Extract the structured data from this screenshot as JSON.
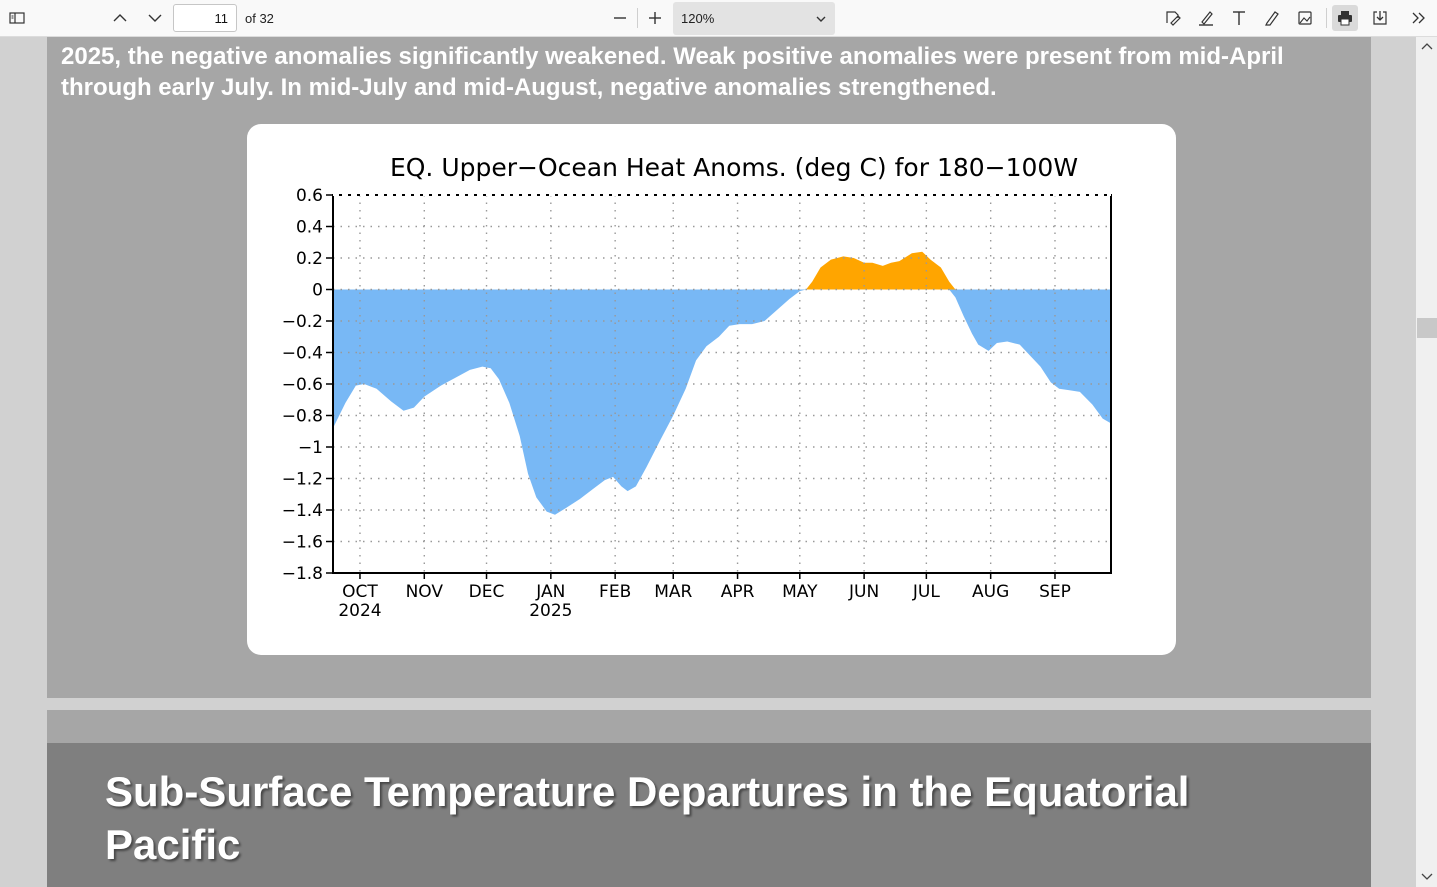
{
  "toolbar": {
    "page_current": "11",
    "page_of": "of 32",
    "zoom_value": "120%"
  },
  "document": {
    "intro_text": "2025, the negative anomalies significantly weakened.  Weak positive anomalies were present from mid-April through early July.  In mid-July and mid-August, negative anomalies strengthened.",
    "section_title": "Sub-Surface Temperature Departures in the Equatorial Pacific"
  },
  "colors": {
    "negative_fill": "#78b8f5",
    "positive_fill": "#ffa500",
    "page_bg": "#a6a6a6",
    "header_bg": "#7f7f7f"
  },
  "chart_data": {
    "type": "area",
    "title": "EQ. Upper−Ocean Heat Anoms. (deg C) for 180−100W",
    "ylim": [
      -1.8,
      0.6
    ],
    "y_ticks": [
      "0.6",
      "0.4",
      "0.2",
      "0",
      "−0.2",
      "−0.4",
      "−0.6",
      "−0.8",
      "−1",
      "−1.2",
      "−1.4",
      "−1.6",
      "−1.8"
    ],
    "y_tick_values": [
      0.6,
      0.4,
      0.2,
      0,
      -0.2,
      -0.4,
      -0.6,
      -0.8,
      -1,
      -1.2,
      -1.4,
      -1.6,
      -1.8
    ],
    "x_range": [
      "2024-09-18",
      "2025-09-28"
    ],
    "x_ticks": [
      {
        "label": "OCT",
        "sub": "2024",
        "date": "2024-10-01"
      },
      {
        "label": "NOV",
        "sub": "",
        "date": "2024-11-01"
      },
      {
        "label": "DEC",
        "sub": "",
        "date": "2024-12-01"
      },
      {
        "label": "JAN",
        "sub": "2025",
        "date": "2025-01-01"
      },
      {
        "label": "FEB",
        "sub": "",
        "date": "2025-02-01"
      },
      {
        "label": "MAR",
        "sub": "",
        "date": "2025-03-01"
      },
      {
        "label": "APR",
        "sub": "",
        "date": "2025-04-01"
      },
      {
        "label": "MAY",
        "sub": "",
        "date": "2025-05-01"
      },
      {
        "label": "JUN",
        "sub": "",
        "date": "2025-06-01"
      },
      {
        "label": "JUL",
        "sub": "",
        "date": "2025-07-01"
      },
      {
        "label": "AUG",
        "sub": "",
        "date": "2025-08-01"
      },
      {
        "label": "SEP",
        "sub": "",
        "date": "2025-09-01"
      }
    ],
    "grid": true,
    "series": [
      {
        "values": [
          [
            "2024-09-18",
            -0.88
          ],
          [
            "2024-09-24",
            -0.72
          ],
          [
            "2024-09-29",
            -0.61
          ],
          [
            "2024-10-03",
            -0.6
          ],
          [
            "2024-10-09",
            -0.63
          ],
          [
            "2024-10-16",
            -0.71
          ],
          [
            "2024-10-22",
            -0.77
          ],
          [
            "2024-10-27",
            -0.75
          ],
          [
            "2024-11-01",
            -0.68
          ],
          [
            "2024-11-09",
            -0.61
          ],
          [
            "2024-11-16",
            -0.56
          ],
          [
            "2024-11-23",
            -0.51
          ],
          [
            "2024-11-29",
            -0.49
          ],
          [
            "2024-12-03",
            -0.5
          ],
          [
            "2024-12-07",
            -0.57
          ],
          [
            "2024-12-12",
            -0.72
          ],
          [
            "2024-12-17",
            -0.93
          ],
          [
            "2024-12-21",
            -1.17
          ],
          [
            "2024-12-25",
            -1.32
          ],
          [
            "2024-12-30",
            -1.41
          ],
          [
            "2025-01-03",
            -1.43
          ],
          [
            "2025-01-08",
            -1.39
          ],
          [
            "2025-01-15",
            -1.33
          ],
          [
            "2025-01-21",
            -1.27
          ],
          [
            "2025-01-27",
            -1.21
          ],
          [
            "2025-01-31",
            -1.19
          ],
          [
            "2025-02-04",
            -1.25
          ],
          [
            "2025-02-07",
            -1.28
          ],
          [
            "2025-02-11",
            -1.25
          ],
          [
            "2025-02-16",
            -1.13
          ],
          [
            "2025-02-23",
            -0.95
          ],
          [
            "2025-03-01",
            -0.8
          ],
          [
            "2025-03-07",
            -0.63
          ],
          [
            "2025-03-12",
            -0.45
          ],
          [
            "2025-03-17",
            -0.36
          ],
          [
            "2025-03-23",
            -0.3
          ],
          [
            "2025-03-28",
            -0.23
          ],
          [
            "2025-04-02",
            -0.22
          ],
          [
            "2025-04-08",
            -0.22
          ],
          [
            "2025-04-14",
            -0.2
          ],
          [
            "2025-04-20",
            -0.13
          ],
          [
            "2025-04-26",
            -0.06
          ],
          [
            "2025-05-01",
            -0.01
          ],
          [
            "2025-05-04",
            0.0
          ],
          [
            "2025-05-07",
            0.05
          ],
          [
            "2025-05-11",
            0.14
          ],
          [
            "2025-05-16",
            0.19
          ],
          [
            "2025-05-22",
            0.21
          ],
          [
            "2025-05-27",
            0.2
          ],
          [
            "2025-06-01",
            0.17
          ],
          [
            "2025-06-05",
            0.17
          ],
          [
            "2025-06-10",
            0.15
          ],
          [
            "2025-06-14",
            0.17
          ],
          [
            "2025-06-18",
            0.18
          ],
          [
            "2025-06-24",
            0.23
          ],
          [
            "2025-06-29",
            0.24
          ],
          [
            "2025-07-03",
            0.19
          ],
          [
            "2025-07-08",
            0.14
          ],
          [
            "2025-07-12",
            0.05
          ],
          [
            "2025-07-15",
            -0.05
          ],
          [
            "2025-07-19",
            -0.17
          ],
          [
            "2025-07-23",
            -0.28
          ],
          [
            "2025-07-26",
            -0.35
          ],
          [
            "2025-07-31",
            -0.39
          ],
          [
            "2025-08-04",
            -0.34
          ],
          [
            "2025-08-09",
            -0.33
          ],
          [
            "2025-08-15",
            -0.35
          ],
          [
            "2025-08-20",
            -0.42
          ],
          [
            "2025-08-25",
            -0.49
          ],
          [
            "2025-08-30",
            -0.59
          ],
          [
            "2025-09-03",
            -0.63
          ],
          [
            "2025-09-08",
            -0.64
          ],
          [
            "2025-09-13",
            -0.65
          ],
          [
            "2025-09-19",
            -0.73
          ],
          [
            "2025-09-24",
            -0.82
          ],
          [
            "2025-09-28",
            -0.85
          ]
        ]
      }
    ]
  }
}
